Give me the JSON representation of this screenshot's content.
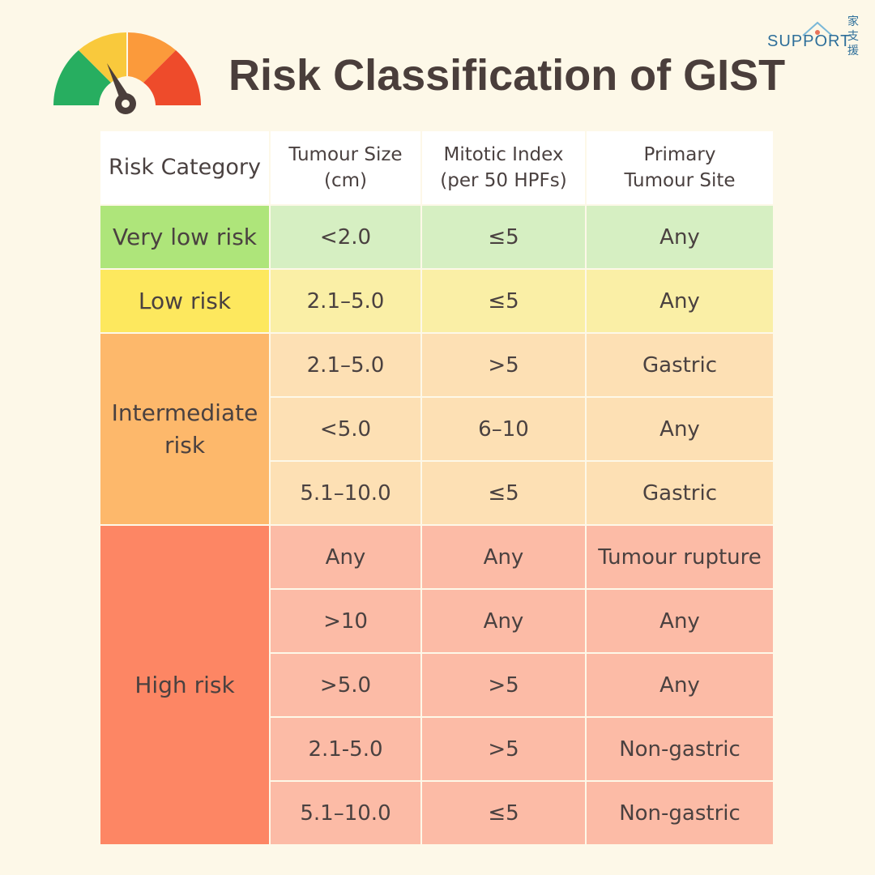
{
  "title": "Risk Classification of GIST",
  "logo": {
    "word": "SUPPORT",
    "cjk": [
      "家",
      "支",
      "援"
    ]
  },
  "gauge": {
    "colors": [
      "#27ae60",
      "#f9c93c",
      "#fb9a3b",
      "#ee4b2b"
    ],
    "needle": "#4a3e3b"
  },
  "colors": {
    "background": "#fdf8e8",
    "very_low": "#aee57a",
    "low": "#fde85e",
    "intermediate": "#fdb86b",
    "high": "#fd8664"
  },
  "table": {
    "headers": [
      "Risk Category",
      "Tumour Size\n(cm)",
      "Mitotic Index\n(per 50 HPFs)",
      "Primary\nTumour Site"
    ],
    "categories": {
      "very_low": "Very low risk",
      "low": "Low risk",
      "intermediate": "Intermediate\nrisk",
      "high": "High risk"
    },
    "rows": [
      {
        "size": "<2.0",
        "mitotic": "≤5",
        "site": "Any"
      },
      {
        "size": "2.1–5.0",
        "mitotic": "≤5",
        "site": "Any"
      },
      {
        "size": "2.1–5.0",
        "mitotic": ">5",
        "site": "Gastric"
      },
      {
        "size": "<5.0",
        "mitotic": "6–10",
        "site": "Any"
      },
      {
        "size": "5.1–10.0",
        "mitotic": "≤5",
        "site": "Gastric"
      },
      {
        "size": "Any",
        "mitotic": "Any",
        "site": "Tumour rupture"
      },
      {
        "size": ">10",
        "mitotic": "Any",
        "site": "Any"
      },
      {
        "size": ">5.0",
        "mitotic": ">5",
        "site": "Any"
      },
      {
        "size": "2.1-5.0",
        "mitotic": ">5",
        "site": "Non-gastric"
      },
      {
        "size": "5.1–10.0",
        "mitotic": "≤5",
        "site": "Non-gastric"
      }
    ]
  }
}
